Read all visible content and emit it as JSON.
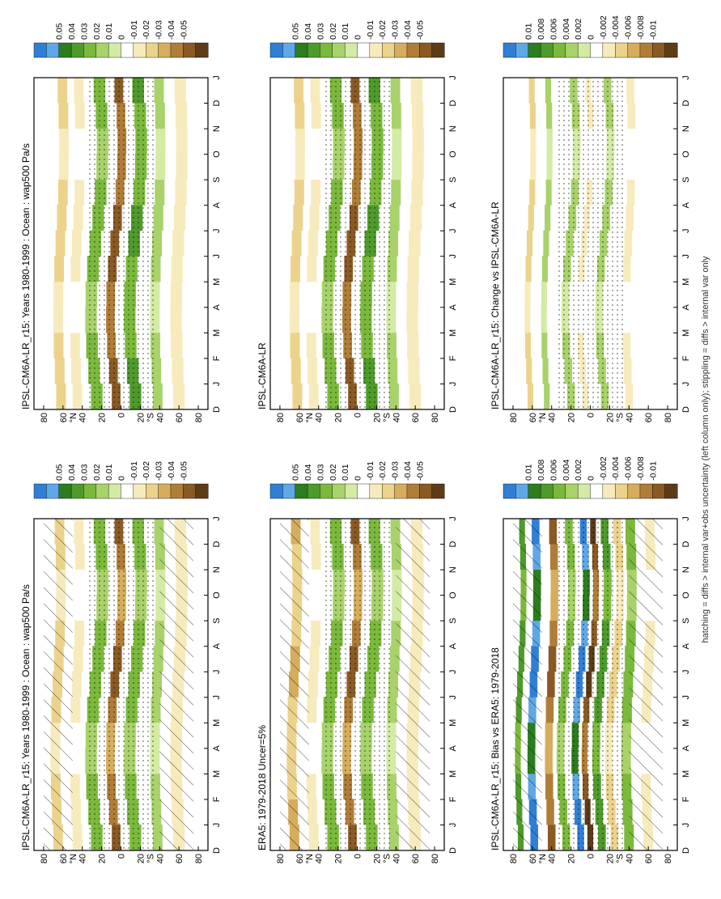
{
  "footer": "hatching = diffs > internal var+obs uncertainty (left column only); stippling = diffs > internal var only",
  "months": [
    "D",
    "J",
    "F",
    "M",
    "A",
    "M",
    "J",
    "J",
    "A",
    "S",
    "O",
    "N",
    "D",
    "J"
  ],
  "lat_ticks": [
    "80",
    "60",
    "40",
    "20",
    "0",
    "20",
    "40",
    "60",
    "80"
  ],
  "hemisphere_labels": {
    "north": "°N",
    "south": "°S"
  },
  "palette": {
    "strong_up": "#2f7fd6",
    "up": "#5fa8e6",
    "green_dark": "#2c7d1e",
    "green": "#4e9a2b",
    "green_mid": "#7bb93c",
    "green_light": "#a8d26a",
    "green_pale": "#d3eba4",
    "neutral": "#ffffff",
    "tan_pale": "#f7ebbd",
    "tan_light": "#ecd38c",
    "tan": "#d6ad5c",
    "brown_mid": "#b07d38",
    "brown": "#8a5a25",
    "brown_dark": "#5c3b17"
  },
  "chart_data": [
    {
      "type": "heatmap",
      "title": "IPSL-CM6A-LR_r15: Years 1980-1999 : Ocean : wap500 Pa/s",
      "x": [
        "D",
        "J",
        "F",
        "M",
        "A",
        "M",
        "J",
        "J",
        "A",
        "S",
        "O",
        "N",
        "D",
        "J"
      ],
      "y_ticks": [
        "80",
        "60",
        "40",
        "20",
        "0",
        "20",
        "40",
        "60",
        "80"
      ],
      "ylim": [
        -90,
        90
      ],
      "colorbar": [
        "0.05",
        "0.04",
        "0.03",
        "0.02",
        "0.01",
        "0",
        "-0.01",
        "-0.02",
        "-0.03",
        "-0.04",
        "-0.05"
      ],
      "hatching": true,
      "stippling": true,
      "bands": [
        {
          "lat": 65,
          "width": 10,
          "value": -0.02
        },
        {
          "lat": 45,
          "width": 10,
          "value": -0.01
        },
        {
          "lat": 25,
          "width": 12,
          "value": 0.02
        },
        {
          "lat": 5,
          "width": 9,
          "value": -0.04
        },
        {
          "lat": -15,
          "width": 12,
          "value": 0.02
        },
        {
          "lat": -38,
          "width": 10,
          "value": 0.01
        },
        {
          "lat": -60,
          "width": 12,
          "value": -0.015
        }
      ]
    },
    {
      "type": "heatmap",
      "title": "IPSL-CM6A-LR_r15: Years 1980-1999 : Ocean : wap500 Pa/s",
      "x": [
        "D",
        "J",
        "F",
        "M",
        "A",
        "M",
        "J",
        "J",
        "A",
        "S",
        "O",
        "N",
        "D",
        "J"
      ],
      "y_ticks": [
        "80",
        "60",
        "40",
        "20",
        "0",
        "20",
        "40",
        "60",
        "80"
      ],
      "ylim": [
        -90,
        90
      ],
      "colorbar": [
        "0.05",
        "0.04",
        "0.03",
        "0.02",
        "0.01",
        "0",
        "-0.01",
        "-0.02",
        "-0.03",
        "-0.04",
        "-0.05"
      ],
      "hatching": false,
      "stippling": true,
      "bands": [
        {
          "lat": 62,
          "width": 10,
          "value": -0.02
        },
        {
          "lat": 45,
          "width": 10,
          "value": -0.01
        },
        {
          "lat": 25,
          "width": 12,
          "value": 0.02
        },
        {
          "lat": 5,
          "width": 9,
          "value": -0.045
        },
        {
          "lat": -15,
          "width": 12,
          "value": 0.025
        },
        {
          "lat": -38,
          "width": 10,
          "value": 0.01
        },
        {
          "lat": -60,
          "width": 12,
          "value": -0.015
        }
      ]
    },
    {
      "type": "heatmap",
      "title": "ERA5: 1979-2018 Uncer=5%",
      "x": [
        "D",
        "J",
        "F",
        "M",
        "A",
        "M",
        "J",
        "J",
        "A",
        "S",
        "O",
        "N",
        "D",
        "J"
      ],
      "y_ticks": [
        "80",
        "60",
        "40",
        "20",
        "0",
        "20",
        "40",
        "60",
        "80"
      ],
      "ylim": [
        -90,
        90
      ],
      "colorbar": [
        "0.05",
        "0.04",
        "0.03",
        "0.02",
        "0.01",
        "0",
        "-0.01",
        "-0.02",
        "-0.03",
        "-0.04",
        "-0.05"
      ],
      "hatching": true,
      "stippling": true,
      "bands": [
        {
          "lat": 65,
          "width": 10,
          "value": -0.025
        },
        {
          "lat": 45,
          "width": 10,
          "value": -0.01
        },
        {
          "lat": 25,
          "width": 12,
          "value": 0.02
        },
        {
          "lat": 5,
          "width": 9,
          "value": -0.04
        },
        {
          "lat": -15,
          "width": 12,
          "value": 0.02
        },
        {
          "lat": -38,
          "width": 10,
          "value": 0.01
        },
        {
          "lat": -60,
          "width": 12,
          "value": -0.015
        }
      ]
    },
    {
      "type": "heatmap",
      "title": "IPSL-CM6A-LR",
      "x": [
        "D",
        "J",
        "F",
        "M",
        "A",
        "M",
        "J",
        "J",
        "A",
        "S",
        "O",
        "N",
        "D",
        "J"
      ],
      "y_ticks": [
        "80",
        "60",
        "40",
        "20",
        "0",
        "20",
        "40",
        "60",
        "80"
      ],
      "ylim": [
        -90,
        90
      ],
      "colorbar": [
        "0.05",
        "0.04",
        "0.03",
        "0.02",
        "0.01",
        "0",
        "-0.01",
        "-0.02",
        "-0.03",
        "-0.04",
        "-0.05"
      ],
      "hatching": false,
      "stippling": true,
      "bands": [
        {
          "lat": 62,
          "width": 10,
          "value": -0.02
        },
        {
          "lat": 45,
          "width": 10,
          "value": -0.01
        },
        {
          "lat": 25,
          "width": 12,
          "value": 0.02
        },
        {
          "lat": 5,
          "width": 9,
          "value": -0.045
        },
        {
          "lat": -15,
          "width": 12,
          "value": 0.025
        },
        {
          "lat": -38,
          "width": 10,
          "value": 0.01
        },
        {
          "lat": -60,
          "width": 12,
          "value": -0.015
        }
      ]
    },
    {
      "type": "heatmap",
      "title": "IPSL-CM6A-LR_r15: Bias vs ERA5: 1979-2018",
      "x": [
        "D",
        "J",
        "F",
        "M",
        "A",
        "M",
        "J",
        "J",
        "A",
        "S",
        "O",
        "N",
        "D",
        "J"
      ],
      "y_ticks": [
        "80",
        "60",
        "40",
        "20",
        "0",
        "20",
        "40",
        "60",
        "80"
      ],
      "ylim": [
        -90,
        90
      ],
      "colorbar": [
        "0.01",
        "0.008",
        "0.006",
        "0.004",
        "0.002",
        "0",
        "-0.002",
        "-0.004",
        "-0.006",
        "-0.008",
        "-0.01"
      ],
      "hatching": true,
      "stippling": true,
      "bands": [
        {
          "lat": 72,
          "width": 6,
          "value": 0.006
        },
        {
          "lat": 58,
          "width": 8,
          "value": 0.01
        },
        {
          "lat": 40,
          "width": 8,
          "value": -0.008
        },
        {
          "lat": 25,
          "width": 8,
          "value": 0.004
        },
        {
          "lat": 10,
          "width": 7,
          "value": 0.01
        },
        {
          "lat": 0,
          "width": 6,
          "value": -0.01
        },
        {
          "lat": -12,
          "width": 8,
          "value": 0.006
        },
        {
          "lat": -25,
          "width": 8,
          "value": -0.004
        },
        {
          "lat": -40,
          "width": 10,
          "value": 0.004
        },
        {
          "lat": -60,
          "width": 10,
          "value": -0.002
        }
      ]
    },
    {
      "type": "heatmap",
      "title": "IPSL-CM6A-LR_r15: Change vs IPSL-CM6A-LR",
      "x": [
        "D",
        "J",
        "F",
        "M",
        "A",
        "M",
        "J",
        "J",
        "A",
        "S",
        "O",
        "N",
        "D",
        "J"
      ],
      "y_ticks": [
        "80",
        "60",
        "40",
        "20",
        "0",
        "20",
        "40",
        "60",
        "80"
      ],
      "ylim": [
        -90,
        90
      ],
      "colorbar": [
        "0.01",
        "0.008",
        "0.006",
        "0.004",
        "0.002",
        "0",
        "-0.002",
        "-0.004",
        "-0.006",
        "-0.008",
        "-0.01"
      ],
      "hatching": false,
      "stippling": true,
      "bands": [
        {
          "lat": 62,
          "width": 6,
          "value": -0.004
        },
        {
          "lat": 45,
          "width": 6,
          "value": 0.002
        },
        {
          "lat": 20,
          "width": 8,
          "value": 0.002
        },
        {
          "lat": 5,
          "width": 6,
          "value": -0.002
        },
        {
          "lat": -15,
          "width": 8,
          "value": 0.002
        },
        {
          "lat": -40,
          "width": 8,
          "value": -0.002
        }
      ]
    }
  ]
}
